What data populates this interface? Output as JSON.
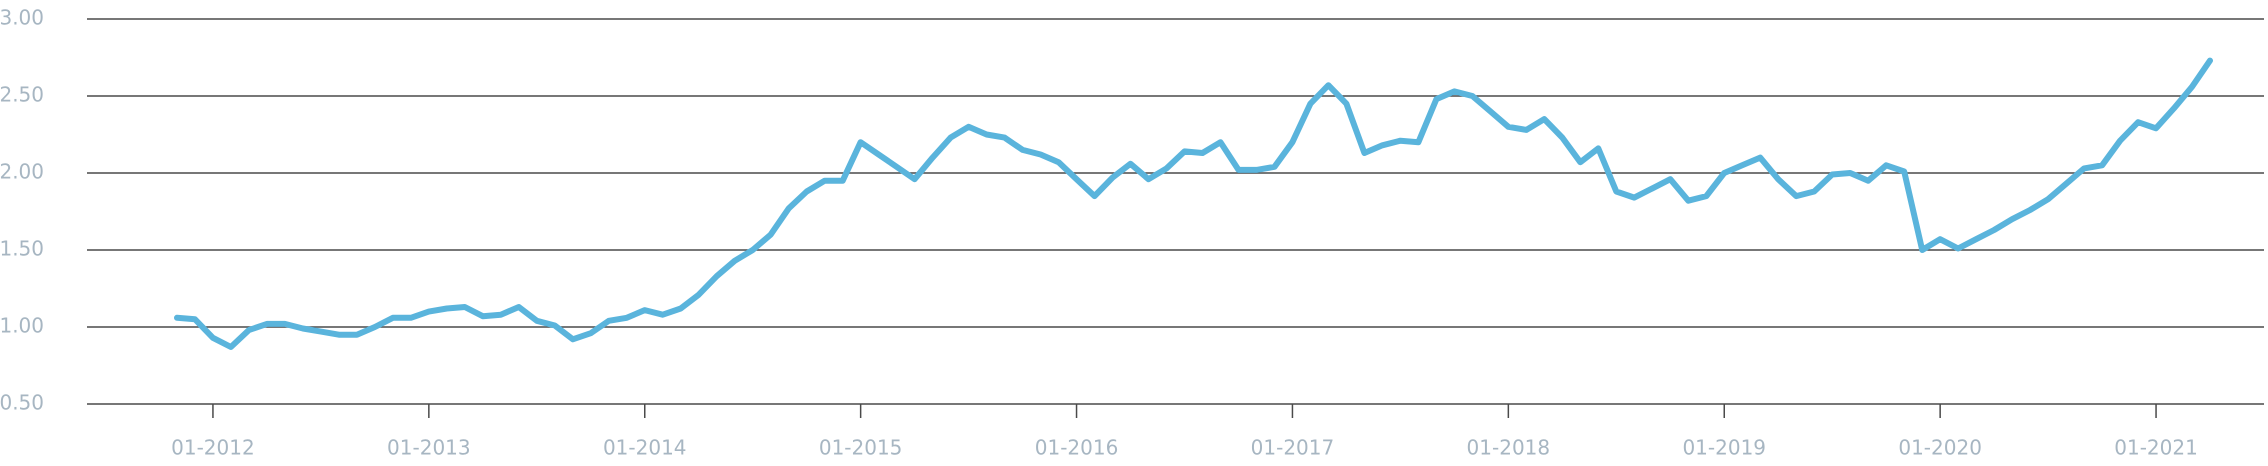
{
  "chart_data": {
    "type": "line",
    "x": [
      "11-2011",
      "12-2011",
      "01-2012",
      "02-2012",
      "03-2012",
      "04-2012",
      "05-2012",
      "06-2012",
      "07-2012",
      "08-2012",
      "09-2012",
      "10-2012",
      "11-2012",
      "12-2012",
      "01-2013",
      "02-2013",
      "03-2013",
      "04-2013",
      "05-2013",
      "06-2013",
      "07-2013",
      "08-2013",
      "09-2013",
      "10-2013",
      "11-2013",
      "12-2013",
      "01-2014",
      "02-2014",
      "03-2014",
      "04-2014",
      "05-2014",
      "06-2014",
      "07-2014",
      "08-2014",
      "09-2014",
      "10-2014",
      "11-2014",
      "12-2014",
      "01-2015",
      "02-2015",
      "03-2015",
      "04-2015",
      "05-2015",
      "06-2015",
      "07-2015",
      "08-2015",
      "09-2015",
      "10-2015",
      "11-2015",
      "12-2015",
      "01-2016",
      "02-2016",
      "03-2016",
      "04-2016",
      "05-2016",
      "06-2016",
      "07-2016",
      "08-2016",
      "09-2016",
      "10-2016",
      "11-2016",
      "12-2016",
      "01-2017",
      "02-2017",
      "03-2017",
      "04-2017",
      "05-2017",
      "06-2017",
      "07-2017",
      "08-2017",
      "09-2017",
      "10-2017",
      "11-2017",
      "12-2017",
      "01-2018",
      "02-2018",
      "03-2018",
      "04-2018",
      "05-2018",
      "06-2018",
      "07-2018",
      "08-2018",
      "09-2018",
      "10-2018",
      "11-2018",
      "12-2018",
      "01-2019",
      "02-2019",
      "03-2019",
      "04-2019",
      "05-2019",
      "06-2019",
      "07-2019",
      "08-2019",
      "09-2019",
      "10-2019",
      "11-2019",
      "12-2019",
      "01-2020",
      "02-2020",
      "03-2020",
      "04-2020",
      "05-2020",
      "06-2020",
      "07-2020",
      "08-2020",
      "09-2020",
      "10-2020",
      "11-2020",
      "12-2020",
      "01-2021",
      "02-2021",
      "03-2021",
      "04-2021"
    ],
    "series": [
      {
        "color": "#5ab4dc",
        "values": [
          1.06,
          1.05,
          0.93,
          0.87,
          0.98,
          1.02,
          1.02,
          0.99,
          0.97,
          0.95,
          0.95,
          1.0,
          1.06,
          1.06,
          1.1,
          1.12,
          1.13,
          1.07,
          1.08,
          1.13,
          1.04,
          1.01,
          0.92,
          0.96,
          1.04,
          1.06,
          1.11,
          1.08,
          1.12,
          1.21,
          1.33,
          1.43,
          1.5,
          1.6,
          1.77,
          1.88,
          1.95,
          1.95,
          2.2,
          2.12,
          2.04,
          1.96,
          2.1,
          2.23,
          2.3,
          2.25,
          2.23,
          2.15,
          2.12,
          2.07,
          1.96,
          1.85,
          1.97,
          2.06,
          1.96,
          2.03,
          2.14,
          2.13,
          2.2,
          2.02,
          2.02,
          2.04,
          2.2,
          2.45,
          2.57,
          2.45,
          2.13,
          2.18,
          2.21,
          2.2,
          2.48,
          2.53,
          2.5,
          2.4,
          2.3,
          2.28,
          2.35,
          2.23,
          2.07,
          2.16,
          1.88,
          1.84,
          1.9,
          1.96,
          1.82,
          1.85,
          2.0,
          2.05,
          2.1,
          1.96,
          1.85,
          1.88,
          1.99,
          2.0,
          1.95,
          2.05,
          2.01,
          1.5,
          1.57,
          1.51,
          1.57,
          1.63,
          1.7,
          1.76,
          1.83,
          1.93,
          2.03,
          2.05,
          2.21,
          2.33,
          2.29,
          2.42,
          2.56,
          2.73
        ]
      }
    ],
    "xlim": [
      "06-2011",
      "07-2021"
    ],
    "xticks": [
      "01-2012",
      "01-2013",
      "01-2014",
      "01-2015",
      "01-2016",
      "01-2017",
      "01-2018",
      "01-2019",
      "01-2020",
      "01-2021"
    ],
    "ylim": [
      0.5,
      3
    ],
    "yticks": [
      {
        "value": 0.5,
        "label": "0.50"
      },
      {
        "value": 1,
        "label": "1.00"
      },
      {
        "value": 1.5,
        "label": "1.50"
      },
      {
        "value": 2,
        "label": "2.00"
      },
      {
        "value": 2.5,
        "label": "2.50"
      },
      {
        "value": 3,
        "label": "3.00"
      }
    ],
    "grid": true
  }
}
